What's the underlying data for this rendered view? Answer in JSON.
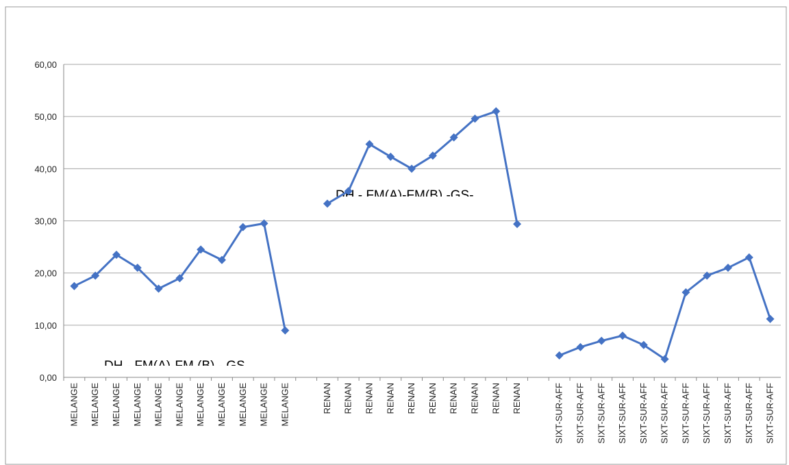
{
  "chart_data": {
    "type": "line",
    "categories": [
      "MELANGE",
      "MELANGE",
      "MELANGE",
      "MELANGE",
      "MELANGE",
      "MELANGE",
      "MELANGE",
      "MELANGE",
      "MELANGE",
      "MELANGE",
      "MELANGE",
      null,
      "RENAN",
      "RENAN",
      "RENAN",
      "RENAN",
      "RENAN",
      "RENAN",
      "RENAN",
      "RENAN",
      "RENAN",
      "RENAN",
      null,
      "SIXT-SUR-AFF",
      "SIXT-SUR-AFF",
      "SIXT-SUR-AFF",
      "SIXT-SUR-AFF",
      "SIXT-SUR-AFF",
      "SIXT-SUR-AFF",
      "SIXT-SUR-AFF",
      "SIXT-SUR-AFF",
      "SIXT-SUR-AFF",
      "SIXT-SUR-AFF",
      "SIXT-SUR-AFF"
    ],
    "series": [
      {
        "color": "#4472c4",
        "values": [
          17.5,
          19.5,
          23.5,
          21,
          17,
          19,
          24.5,
          22.5,
          28.8,
          29.5,
          9,
          null,
          33.3,
          35.7,
          44.7,
          42.3,
          40,
          42.5,
          46,
          49.6,
          51,
          29.4,
          null,
          4.2,
          5.8,
          7,
          8,
          6.2,
          3.5,
          16.3,
          19.5,
          21,
          23,
          11.2
        ]
      }
    ],
    "ylim": [
      0,
      60
    ],
    "yticks": [
      {
        "value": 0,
        "label": "0,00"
      },
      {
        "value": 10,
        "label": "10,00"
      },
      {
        "value": 20,
        "label": "20,00"
      },
      {
        "value": 30,
        "label": "30,00"
      },
      {
        "value": 40,
        "label": "40,00"
      },
      {
        "value": 50,
        "label": "50,00"
      },
      {
        "value": 60,
        "label": "60,00"
      }
    ],
    "grid": true,
    "annotations": [
      "DH - FM(A)-FM (B) - GS",
      "DH - FM(A)-FM(B) -GS-"
    ]
  }
}
